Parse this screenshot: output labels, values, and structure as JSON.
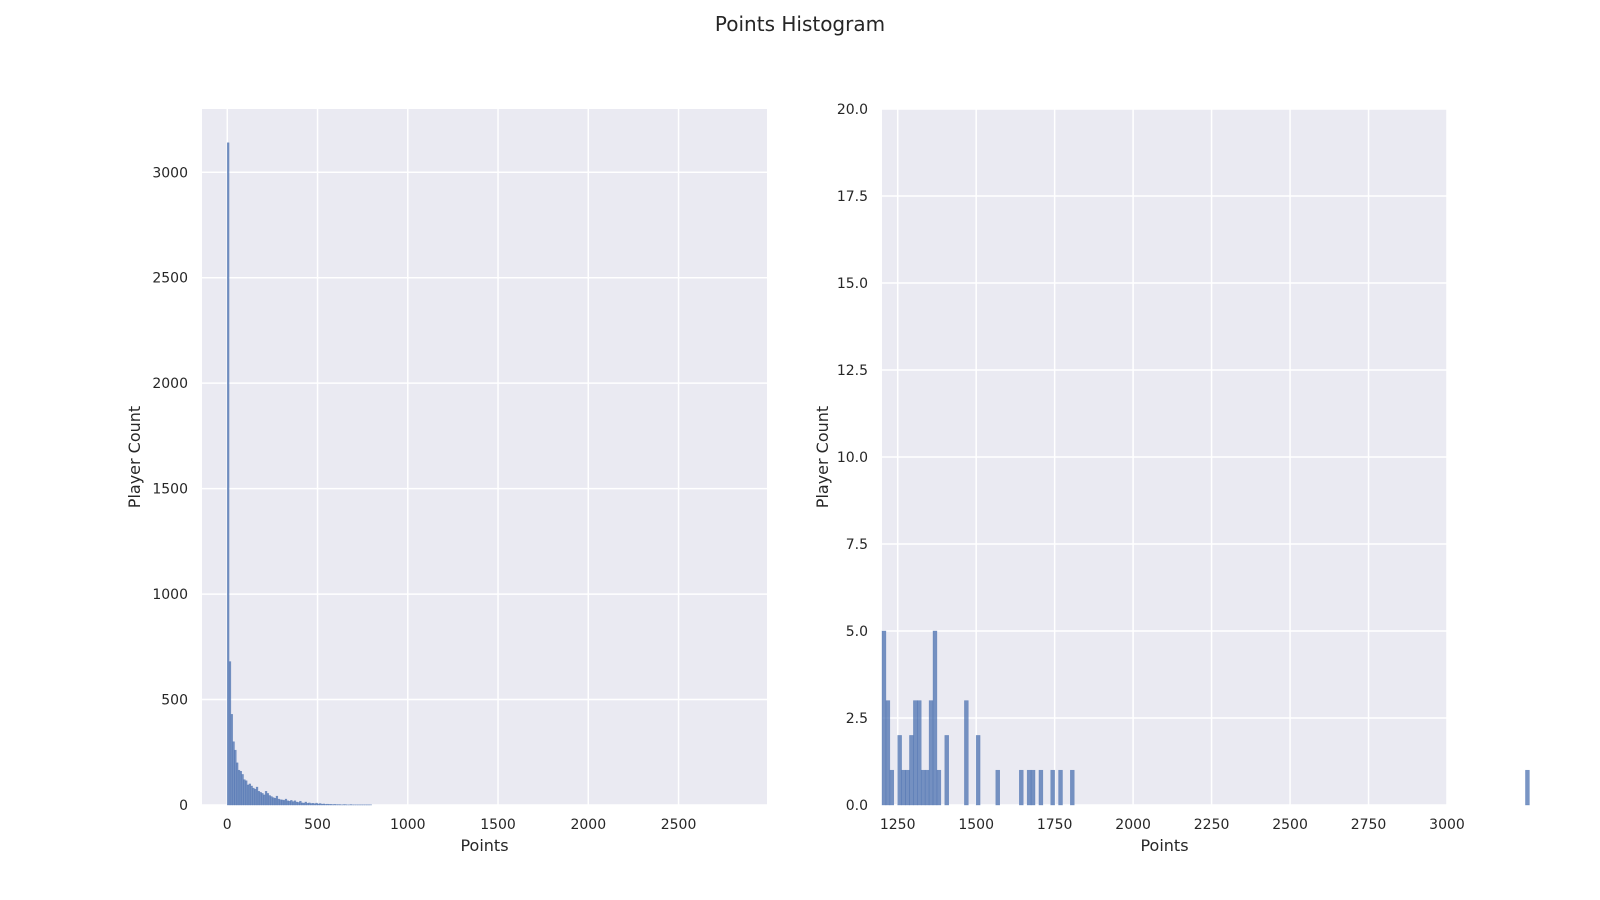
{
  "figure": {
    "title": "Points Histogram",
    "background": "#ffffff",
    "axes_face": "#eaeaf2",
    "grid_color": "#ffffff",
    "bar_color": "#4c72b0"
  },
  "chart_data": [
    {
      "type": "bar",
      "subtype": "histogram",
      "title": "",
      "xlabel": "Points",
      "ylabel": "Player Count",
      "xlim": [
        -140,
        2990
      ],
      "ylim": [
        0,
        3300
      ],
      "xticks": [
        0,
        500,
        1000,
        1500,
        2000,
        2500
      ],
      "xtick_labels": [
        "0",
        "500",
        "1000",
        "1500",
        "2000",
        "2500"
      ],
      "yticks": [
        0,
        500,
        1000,
        1500,
        2000,
        2500,
        3000
      ],
      "ytick_labels": [
        "0",
        "500",
        "1000",
        "1500",
        "2000",
        "2500",
        "3000"
      ],
      "grid": true,
      "legend": "none",
      "bin_width": 10,
      "bins_start": 0,
      "values": [
        3140,
        680,
        430,
        300,
        260,
        200,
        165,
        160,
        145,
        120,
        115,
        95,
        100,
        90,
        80,
        75,
        85,
        65,
        60,
        55,
        48,
        65,
        55,
        45,
        40,
        35,
        32,
        42,
        28,
        25,
        24,
        22,
        28,
        20,
        18,
        22,
        16,
        20,
        14,
        12,
        18,
        10,
        9,
        14,
        8,
        10,
        7,
        8,
        6,
        9,
        5,
        7,
        4,
        5,
        3,
        4,
        3,
        3,
        2,
        3,
        2,
        2,
        2,
        1,
        2,
        2,
        1,
        1,
        2,
        1,
        1,
        1,
        1,
        1,
        1,
        1,
        1,
        1,
        1,
        1
      ]
    },
    {
      "type": "bar",
      "subtype": "histogram",
      "title": "",
      "xlabel": "Points",
      "ylabel": "Player Count",
      "xlim": [
        1200,
        3000
      ],
      "ylim": [
        0,
        20
      ],
      "xticks": [
        1250,
        1500,
        1750,
        2000,
        2250,
        2500,
        2750,
        3000
      ],
      "xtick_labels": [
        "1250",
        "1500",
        "1750",
        "2000",
        "2250",
        "2500",
        "2750",
        "3000"
      ],
      "yticks": [
        0,
        2.5,
        5,
        7.5,
        10,
        12.5,
        15,
        17.5,
        20
      ],
      "ytick_labels": [
        "0.0",
        "2.5",
        "5.0",
        "7.5",
        "10.0",
        "12.5",
        "15.0",
        "17.5",
        "20.0"
      ],
      "grid": true,
      "legend": "none",
      "bin_width": 12.5,
      "bins_start": 1200,
      "values": [
        5,
        3,
        1,
        0,
        2,
        1,
        1,
        2,
        3,
        3,
        1,
        1,
        3,
        5,
        1,
        0,
        2,
        0,
        0,
        0,
        0,
        3,
        0,
        0,
        2,
        0,
        0,
        0,
        0,
        1,
        0,
        0,
        0,
        0,
        0,
        1,
        0,
        1,
        1,
        0,
        1,
        0,
        0,
        1,
        0,
        1,
        0,
        0,
        1,
        0,
        0,
        0,
        0,
        0,
        0,
        0,
        0,
        0,
        0,
        0,
        0,
        0,
        0,
        0,
        0,
        0,
        0,
        0,
        0,
        0,
        0,
        0,
        0,
        0,
        0,
        0,
        0,
        0,
        0,
        0,
        0,
        0,
        0,
        0,
        0,
        0,
        0,
        0,
        0,
        0,
        0,
        0,
        0,
        0,
        0,
        0,
        0,
        0,
        0,
        0,
        0,
        0,
        0,
        0,
        0,
        0,
        0,
        0,
        0,
        0,
        0,
        0,
        0,
        0,
        0,
        0,
        0,
        0,
        0,
        0,
        0,
        0,
        0,
        0,
        0,
        0,
        0,
        0,
        0,
        0,
        0,
        0,
        0,
        0,
        0,
        0,
        0,
        0,
        0,
        0,
        0,
        0,
        0,
        0,
        0,
        0,
        0,
        0,
        0,
        0,
        0,
        0,
        0,
        0,
        0,
        0,
        0,
        0,
        0,
        0,
        0,
        0,
        0,
        0,
        1
      ]
    }
  ]
}
